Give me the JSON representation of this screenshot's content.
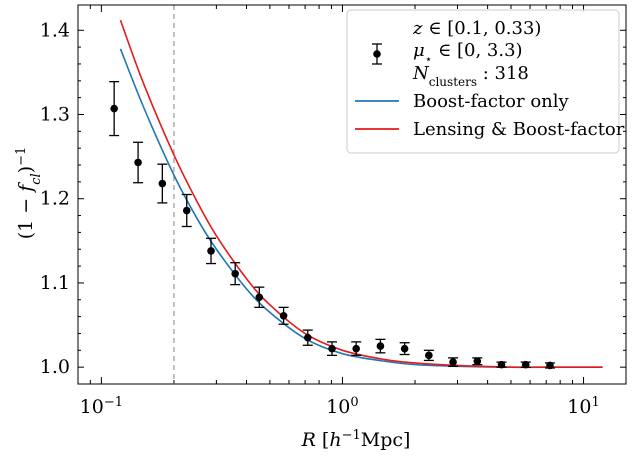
{
  "chart_data": {
    "type": "scatter",
    "xscale": "log",
    "xlim": [
      0.08,
      15
    ],
    "ylim": [
      0.98,
      1.43
    ],
    "xlabel": "R [h^-1 Mpc]",
    "ylabel": "(1 - f_cl)^-1",
    "x_ticks": [
      {
        "value": 0.1,
        "label": "10^-1"
      },
      {
        "value": 1,
        "label": "10^0"
      },
      {
        "value": 10,
        "label": "10^1"
      }
    ],
    "y_ticks": [
      1.0,
      1.1,
      1.2,
      1.3,
      1.4
    ],
    "vline": {
      "x": 0.2,
      "style": "dashed",
      "color": "#999999"
    },
    "legend": {
      "position": "top-right",
      "data_entry_lines": [
        "z ∈ [0.1, 0.33)",
        "μ⋆ ∈ [0, 3.3)",
        "N_clusters : 318"
      ],
      "entries": [
        {
          "label": "Boost-factor only",
          "color": "#1f77b4"
        },
        {
          "label": "Lensing & Boost-factor",
          "color": "#e41a1c"
        }
      ]
    },
    "points": [
      {
        "x": 0.113,
        "y": 1.307,
        "err": 0.032
      },
      {
        "x": 0.142,
        "y": 1.243,
        "err": 0.024
      },
      {
        "x": 0.179,
        "y": 1.218,
        "err": 0.023
      },
      {
        "x": 0.226,
        "y": 1.186,
        "err": 0.019
      },
      {
        "x": 0.285,
        "y": 1.138,
        "err": 0.015
      },
      {
        "x": 0.359,
        "y": 1.111,
        "err": 0.013
      },
      {
        "x": 0.452,
        "y": 1.083,
        "err": 0.012
      },
      {
        "x": 0.57,
        "y": 1.061,
        "err": 0.01
      },
      {
        "x": 0.718,
        "y": 1.035,
        "err": 0.009
      },
      {
        "x": 0.905,
        "y": 1.022,
        "err": 0.008
      },
      {
        "x": 1.14,
        "y": 1.022,
        "err": 0.008
      },
      {
        "x": 1.437,
        "y": 1.025,
        "err": 0.008
      },
      {
        "x": 1.811,
        "y": 1.022,
        "err": 0.007
      },
      {
        "x": 2.282,
        "y": 1.014,
        "err": 0.006
      },
      {
        "x": 2.876,
        "y": 1.006,
        "err": 0.005
      },
      {
        "x": 3.625,
        "y": 1.007,
        "err": 0.004
      },
      {
        "x": 4.568,
        "y": 1.003,
        "err": 0.003
      },
      {
        "x": 5.757,
        "y": 1.003,
        "err": 0.003
      },
      {
        "x": 7.256,
        "y": 1.002,
        "err": 0.003
      }
    ],
    "series": [
      {
        "name": "Boost-factor only",
        "color": "#1f77b4",
        "x": [
          0.12,
          0.15,
          0.2,
          0.25,
          0.3,
          0.4,
          0.5,
          0.7,
          1.0,
          1.5,
          2.0,
          3.0,
          5.0,
          8.0,
          12.0
        ],
        "y": [
          1.378,
          1.308,
          1.228,
          1.176,
          1.14,
          1.093,
          1.065,
          1.034,
          1.016,
          1.007,
          1.003,
          1.001,
          1.0,
          1.0,
          1.0
        ]
      },
      {
        "name": "Lensing & Boost-factor",
        "color": "#e41a1c",
        "x": [
          0.12,
          0.15,
          0.2,
          0.25,
          0.3,
          0.4,
          0.5,
          0.7,
          1.0,
          1.5,
          2.0,
          3.0,
          5.0,
          8.0,
          12.0
        ],
        "y": [
          1.412,
          1.336,
          1.252,
          1.196,
          1.156,
          1.105,
          1.074,
          1.04,
          1.02,
          1.009,
          1.005,
          1.002,
          1.0,
          1.0,
          1.0
        ]
      }
    ]
  }
}
